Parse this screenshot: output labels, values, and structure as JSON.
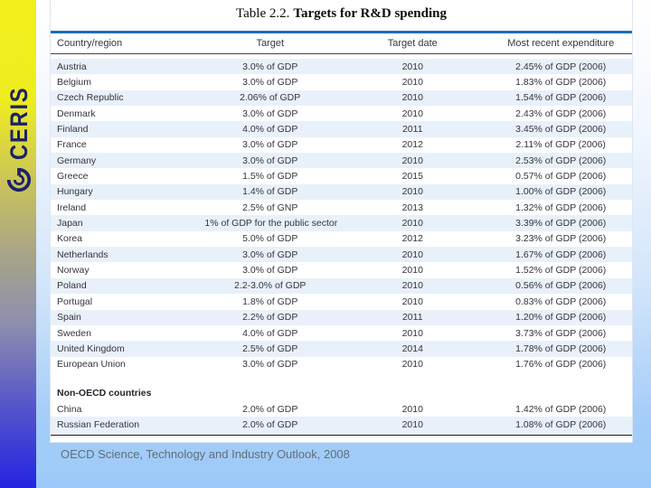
{
  "sidebar": {
    "logo_text": "CERIS"
  },
  "table": {
    "title_prefix": "Table 2.2.",
    "title_main": "Targets for R&D spending"
  },
  "chart_data": {
    "type": "table",
    "title": "Table 2.2. Targets for R&D spending",
    "columns": [
      "Country/region",
      "Target",
      "Target date",
      "Most recent expenditure"
    ],
    "sections": [
      {
        "header": "",
        "rows": [
          [
            "Austria",
            "3.0% of GDP",
            "2010",
            "2.45% of GDP (2006)"
          ],
          [
            "Belgium",
            "3.0% of GDP",
            "2010",
            "1.83% of GDP (2006)"
          ],
          [
            "Czech Republic",
            "2.06% of GDP",
            "2010",
            "1.54% of GDP (2006)"
          ],
          [
            "Denmark",
            "3.0% of GDP",
            "2010",
            "2.43% of GDP (2006)"
          ],
          [
            "Finland",
            "4.0% of GDP",
            "2011",
            "3.45% of GDP (2006)"
          ],
          [
            "France",
            "3.0% of GDP",
            "2012",
            "2.11% of GDP (2006)"
          ],
          [
            "Germany",
            "3.0% of GDP",
            "2010",
            "2.53% of GDP (2006)"
          ],
          [
            "Greece",
            "1.5% of GDP",
            "2015",
            "0.57% of GDP (2006)"
          ],
          [
            "Hungary",
            "1.4% of GDP",
            "2010",
            "1.00% of GDP (2006)"
          ],
          [
            "Ireland",
            "2.5% of GNP",
            "2013",
            "1.32% of GDP (2006)"
          ],
          [
            "Japan",
            "1% of GDP for the public sector",
            "2010",
            "3.39% of GDP (2006)"
          ],
          [
            "Korea",
            "5.0% of GDP",
            "2012",
            "3.23% of GDP (2006)"
          ],
          [
            "Netherlands",
            "3.0% of GDP",
            "2010",
            "1.67% of GDP (2006)"
          ],
          [
            "Norway",
            "3.0% of GDP",
            "2010",
            "1.52% of GDP (2006)"
          ],
          [
            "Poland",
            "2.2-3.0% of GDP",
            "2010",
            "0.56% of GDP (2006)"
          ],
          [
            "Portugal",
            "1.8% of GDP",
            "2010",
            "0.83% of GDP (2006)"
          ],
          [
            "Spain",
            "2.2% of GDP",
            "2011",
            "1.20% of GDP (2006)"
          ],
          [
            "Sweden",
            "4.0% of GDP",
            "2010",
            "3.73% of GDP (2006)"
          ],
          [
            "United Kingdom",
            "2.5% of GDP",
            "2014",
            "1.78% of GDP (2006)"
          ],
          [
            "European Union",
            "3.0% of GDP",
            "2010",
            "1.76% of GDP (2006)"
          ]
        ]
      },
      {
        "header": "Non-OECD countries",
        "rows": [
          [
            "China",
            "2.0% of GDP",
            "2010",
            "1.42% of GDP (2006)"
          ],
          [
            "Russian Federation",
            "2.0% of GDP",
            "2010",
            "1.08% of GDP (2006)"
          ]
        ]
      }
    ]
  },
  "footer": {
    "source": "OECD Science, Technology and Industry Outlook, 2008"
  },
  "colors": {
    "table_rule_blue": "#1c6cb8",
    "row_stripe": "#e8f1fa",
    "slide_bg_bottom": "#9ccaf8",
    "sidebar_yellow": "#f0ee1e",
    "sidebar_blue": "#2424e2",
    "logo_navy": "#1b2368",
    "caption_gray": "#636e79"
  }
}
